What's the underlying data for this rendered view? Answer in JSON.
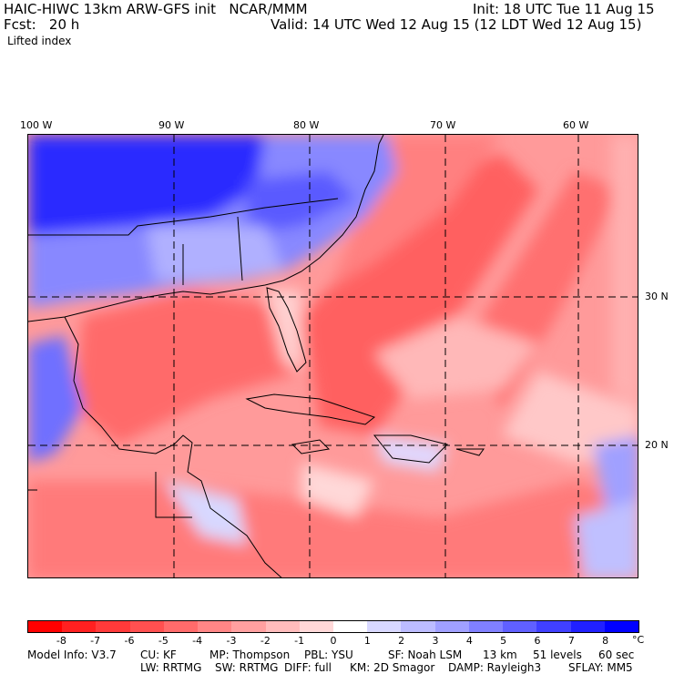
{
  "header": {
    "title_line1": "HAIC-HIWC 13km ARW-GFS init   NCAR/MMM",
    "init": "Init: 18 UTC Tue 11 Aug 15",
    "fcst": "Fcst:   20 h",
    "valid": "Valid: 14 UTC Wed 12 Aug 15 (12 LDT Wed 12 Aug 15)",
    "field": "Lifted index"
  },
  "map": {
    "lon_labels": [
      "100 W",
      "90 W",
      "80 W",
      "70 W",
      "60 W"
    ],
    "lat_labels": [
      "30 N",
      "20 N"
    ]
  },
  "colorbar": {
    "colors": [
      "#ff0000",
      "#ff2020",
      "#ff3a3a",
      "#ff5050",
      "#ff6b6b",
      "#ff8686",
      "#ffa0a0",
      "#ffbcbc",
      "#ffd8d8",
      "#ffffff",
      "#d8d8ff",
      "#bcbcff",
      "#a0a0ff",
      "#8080ff",
      "#6060ff",
      "#4040ff",
      "#2020ff",
      "#0000ff"
    ],
    "labels": [
      "-8",
      "-7",
      "-6",
      "-5",
      "-4",
      "-3",
      "-2",
      "-1",
      "0",
      "1",
      "2",
      "3",
      "4",
      "5",
      "6",
      "7",
      "8"
    ],
    "unit": "°C"
  },
  "footer": {
    "line1": [
      "Model Info: V3.7",
      "CU: KF",
      "MP: Thompson",
      "PBL: YSU",
      "SF: Noah LSM",
      "13 km",
      "51 levels",
      "60 sec"
    ],
    "line2": [
      "LW: RRTMG",
      "SW: RRTMG",
      "DIFF: full",
      "KM: 2D Smagor",
      "DAMP: Rayleigh3",
      "SFLAY: MM5"
    ]
  }
}
